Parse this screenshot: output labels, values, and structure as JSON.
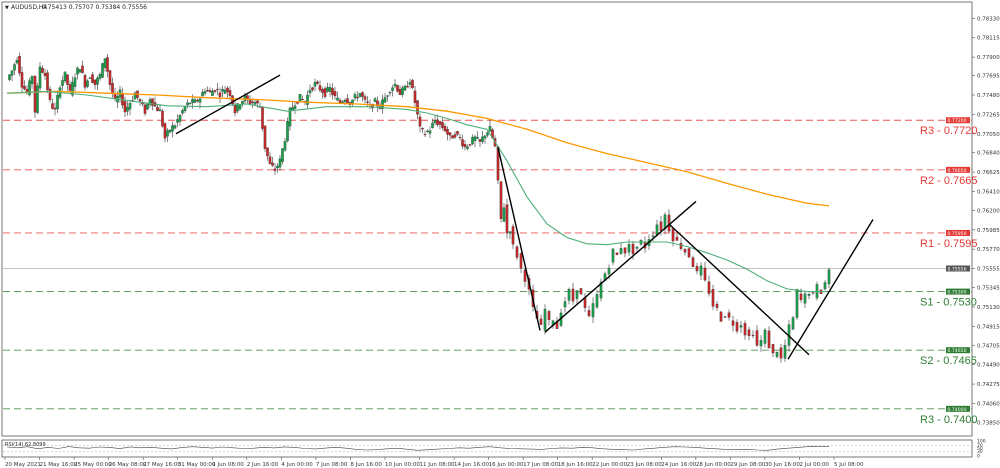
{
  "header": {
    "symbol_label": "AUDUSD,H4",
    "ohlc_label": "0.75413 0.75707 0.75384 0.75556"
  },
  "rsi": {
    "label": "RSI(14) 62.8099",
    "ticks": [
      "100",
      "70",
      "50",
      "30",
      "0"
    ],
    "value": 62.8099
  },
  "chart_data": {
    "type": "candlestick",
    "title": "AUDUSD,H4",
    "ylim": [
      0.7371,
      0.785
    ],
    "y_ticks": [
      "0.78330",
      "0.78115",
      "0.77900",
      "0.77695",
      "0.77480",
      "0.77265",
      "0.77050",
      "0.76840",
      "0.76625",
      "0.76410",
      "0.76200",
      "0.75985",
      "0.75770",
      "0.75555",
      "0.75345",
      "0.75130",
      "0.74915",
      "0.74705",
      "0.74490",
      "0.74275",
      "0.74060",
      "0.73850"
    ],
    "x_ticks": [
      "20 May 2021",
      "21 May 16:00",
      "25 May 00:00",
      "26 May 08:00",
      "27 May 16:00",
      "31 May 00:00",
      "1 Jun 08:00",
      "2 Jun 16:00",
      "4 Jun 00:00",
      "7 Jun 08:00",
      "8 Jun 16:00",
      "10 Jun 00:00",
      "11 Jun 08:00",
      "14 Jun 16:00",
      "16 Jun 00:00",
      "17 Jun 08:00",
      "18 Jun 16:00",
      "22 Jun 00:00",
      "23 Jun 08:00",
      "24 Jun 16:00",
      "28 Jun 00:00",
      "29 Jun 08:00",
      "30 Jun 16:00",
      "2 Jul 00:00",
      "5 Jul 08:00"
    ],
    "current_price": {
      "value": 0.75556,
      "label": "0.75556"
    },
    "levels": [
      {
        "name": "R3 - 0.7720",
        "value": 0.772,
        "tag": "0.77200",
        "color": "#e53935",
        "dash": "red"
      },
      {
        "name": "R2 - 0.7665",
        "value": 0.7665,
        "tag": "0.76650",
        "color": "#e53935",
        "dash": "red"
      },
      {
        "name": "R1 - 0.7595",
        "value": 0.7595,
        "tag": "0.75950",
        "color": "#e53935",
        "dash": "red"
      },
      {
        "name": "S1 - 0.7530",
        "value": 0.753,
        "tag": "0.75300",
        "color": "#2e7d32",
        "dash": "green"
      },
      {
        "name": "S2 - 0.7465",
        "value": 0.7465,
        "tag": "0.74650",
        "color": "#2e7d32",
        "dash": "green"
      },
      {
        "name": "R3 - 0.7400",
        "value": 0.74,
        "tag": "0.74000",
        "color": "#2e7d32",
        "dash": "green"
      }
    ],
    "colors": {
      "bull": "#1a9e4b",
      "bear": "#c62828",
      "ma_fast": "#4caf7a",
      "ma_slow": "#ff9800",
      "trendline": "#000000",
      "current_line": "#b0b0b0"
    },
    "candle_path": [
      [
        0,
        0.7765
      ],
      [
        5,
        0.7775
      ],
      [
        10,
        0.779
      ],
      [
        15,
        0.776
      ],
      [
        20,
        0.775
      ],
      [
        25,
        0.777
      ],
      [
        28,
        0.773
      ],
      [
        33,
        0.778
      ],
      [
        38,
        0.777
      ],
      [
        43,
        0.774
      ],
      [
        48,
        0.773
      ],
      [
        53,
        0.776
      ],
      [
        58,
        0.777
      ],
      [
        63,
        0.775
      ],
      [
        68,
        0.777
      ],
      [
        73,
        0.778
      ],
      [
        78,
        0.776
      ],
      [
        83,
        0.777
      ],
      [
        88,
        0.776
      ],
      [
        93,
        0.777
      ],
      [
        98,
        0.779
      ],
      [
        103,
        0.776
      ],
      [
        108,
        0.774
      ],
      [
        113,
        0.775
      ],
      [
        118,
        0.773
      ],
      [
        123,
        0.774
      ],
      [
        128,
        0.775
      ],
      [
        133,
        0.774
      ],
      [
        138,
        0.773
      ],
      [
        143,
        0.7745
      ],
      [
        148,
        0.7735
      ],
      [
        153,
        0.773
      ],
      [
        158,
        0.77
      ],
      [
        163,
        0.771
      ],
      [
        168,
        0.7715
      ],
      [
        173,
        0.7725
      ],
      [
        178,
        0.7735
      ],
      [
        183,
        0.774
      ],
      [
        188,
        0.774
      ],
      [
        193,
        0.7745
      ],
      [
        198,
        0.7755
      ],
      [
        203,
        0.775
      ],
      [
        208,
        0.7755
      ],
      [
        213,
        0.775
      ],
      [
        218,
        0.7755
      ],
      [
        223,
        0.775
      ],
      [
        228,
        0.773
      ],
      [
        233,
        0.774
      ],
      [
        238,
        0.7745
      ],
      [
        243,
        0.774
      ],
      [
        248,
        0.774
      ],
      [
        253,
        0.7735
      ],
      [
        258,
        0.769
      ],
      [
        263,
        0.767
      ],
      [
        268,
        0.7665
      ],
      [
        273,
        0.7675
      ],
      [
        278,
        0.77
      ],
      [
        283,
        0.773
      ],
      [
        288,
        0.774
      ],
      [
        293,
        0.7745
      ],
      [
        298,
        0.774
      ],
      [
        303,
        0.7755
      ],
      [
        308,
        0.776
      ],
      [
        313,
        0.7755
      ],
      [
        318,
        0.775
      ],
      [
        323,
        0.7755
      ],
      [
        328,
        0.7745
      ],
      [
        333,
        0.774
      ],
      [
        338,
        0.7745
      ],
      [
        343,
        0.774
      ],
      [
        348,
        0.7745
      ],
      [
        353,
        0.775
      ],
      [
        358,
        0.774
      ],
      [
        363,
        0.7735
      ],
      [
        368,
        0.774
      ],
      [
        373,
        0.7735
      ],
      [
        378,
        0.7745
      ],
      [
        383,
        0.7755
      ],
      [
        388,
        0.776
      ],
      [
        393,
        0.775
      ],
      [
        398,
        0.7755
      ],
      [
        403,
        0.7765
      ],
      [
        408,
        0.774
      ],
      [
        413,
        0.771
      ],
      [
        418,
        0.7705
      ],
      [
        423,
        0.771
      ],
      [
        428,
        0.772
      ],
      [
        433,
        0.7715
      ],
      [
        438,
        0.771
      ],
      [
        443,
        0.77
      ],
      [
        448,
        0.7705
      ],
      [
        453,
        0.77
      ],
      [
        458,
        0.769
      ],
      [
        463,
        0.7695
      ],
      [
        468,
        0.77
      ],
      [
        473,
        0.7695
      ],
      [
        478,
        0.7705
      ],
      [
        483,
        0.771
      ],
      [
        488,
        0.769
      ],
      [
        491,
        0.765
      ],
      [
        494,
        0.761
      ],
      [
        497,
        0.7625
      ],
      [
        500,
        0.7595
      ],
      [
        503,
        0.76
      ],
      [
        506,
        0.758
      ],
      [
        510,
        0.757
      ],
      [
        514,
        0.7555
      ],
      [
        518,
        0.7545
      ],
      [
        522,
        0.753
      ],
      [
        526,
        0.751
      ],
      [
        530,
        0.75
      ],
      [
        534,
        0.749
      ],
      [
        538,
        0.751
      ],
      [
        542,
        0.7495
      ],
      [
        546,
        0.75
      ],
      [
        550,
        0.749
      ],
      [
        554,
        0.751
      ],
      [
        558,
        0.752
      ],
      [
        562,
        0.753
      ],
      [
        566,
        0.752
      ],
      [
        570,
        0.7535
      ],
      [
        574,
        0.7525
      ],
      [
        578,
        0.751
      ],
      [
        582,
        0.75
      ],
      [
        586,
        0.7515
      ],
      [
        590,
        0.7525
      ],
      [
        594,
        0.754
      ],
      [
        598,
        0.755
      ],
      [
        602,
        0.756
      ],
      [
        606,
        0.7575
      ],
      [
        610,
        0.757
      ],
      [
        614,
        0.758
      ],
      [
        618,
        0.7575
      ],
      [
        622,
        0.758
      ],
      [
        626,
        0.7575
      ],
      [
        630,
        0.758
      ],
      [
        634,
        0.7585
      ],
      [
        638,
        0.758
      ],
      [
        642,
        0.759
      ],
      [
        646,
        0.7595
      ],
      [
        650,
        0.7605
      ],
      [
        654,
        0.76
      ],
      [
        658,
        0.7615
      ],
      [
        662,
        0.76
      ],
      [
        666,
        0.759
      ],
      [
        670,
        0.7585
      ],
      [
        674,
        0.758
      ],
      [
        678,
        0.7575
      ],
      [
        682,
        0.757
      ],
      [
        686,
        0.756
      ],
      [
        690,
        0.755
      ],
      [
        694,
        0.7555
      ],
      [
        698,
        0.754
      ],
      [
        702,
        0.753
      ],
      [
        706,
        0.7515
      ],
      [
        710,
        0.751
      ],
      [
        714,
        0.75
      ],
      [
        718,
        0.7505
      ],
      [
        722,
        0.75
      ],
      [
        726,
        0.7495
      ],
      [
        730,
        0.749
      ],
      [
        734,
        0.7495
      ],
      [
        738,
        0.7485
      ],
      [
        742,
        0.748
      ],
      [
        746,
        0.7485
      ],
      [
        750,
        0.747
      ],
      [
        754,
        0.7475
      ],
      [
        758,
        0.7485
      ],
      [
        762,
        0.747
      ],
      [
        766,
        0.746
      ],
      [
        770,
        0.7465
      ],
      [
        774,
        0.7455
      ],
      [
        778,
        0.747
      ],
      [
        782,
        0.749
      ],
      [
        786,
        0.75
      ],
      [
        790,
        0.753
      ],
      [
        794,
        0.752
      ],
      [
        798,
        0.7525
      ],
      [
        802,
        0.753
      ],
      [
        806,
        0.7525
      ],
      [
        810,
        0.7535
      ],
      [
        814,
        0.753
      ],
      [
        818,
        0.754
      ],
      [
        822,
        0.7555
      ]
    ],
    "ma_fast": [
      [
        0,
        0.775
      ],
      [
        40,
        0.7752
      ],
      [
        80,
        0.7748
      ],
      [
        120,
        0.7742
      ],
      [
        160,
        0.7736
      ],
      [
        200,
        0.7735
      ],
      [
        240,
        0.7738
      ],
      [
        280,
        0.773
      ],
      [
        320,
        0.7735
      ],
      [
        360,
        0.7735
      ],
      [
        400,
        0.7732
      ],
      [
        420,
        0.7728
      ],
      [
        440,
        0.7722
      ],
      [
        460,
        0.7715
      ],
      [
        480,
        0.771
      ],
      [
        500,
        0.7675
      ],
      [
        520,
        0.7635
      ],
      [
        540,
        0.7605
      ],
      [
        560,
        0.759
      ],
      [
        580,
        0.7583
      ],
      [
        600,
        0.7582
      ],
      [
        620,
        0.7585
      ],
      [
        640,
        0.7585
      ],
      [
        660,
        0.7585
      ],
      [
        680,
        0.758
      ],
      [
        700,
        0.7573
      ],
      [
        720,
        0.7565
      ],
      [
        740,
        0.7555
      ],
      [
        760,
        0.7542
      ],
      [
        780,
        0.7533
      ],
      [
        800,
        0.753
      ],
      [
        822,
        0.753
      ]
    ],
    "ma_slow": [
      [
        0,
        0.775
      ],
      [
        50,
        0.7752
      ],
      [
        100,
        0.775
      ],
      [
        150,
        0.7748
      ],
      [
        200,
        0.7745
      ],
      [
        250,
        0.7743
      ],
      [
        300,
        0.774
      ],
      [
        350,
        0.7738
      ],
      [
        400,
        0.7735
      ],
      [
        440,
        0.773
      ],
      [
        480,
        0.7722
      ],
      [
        520,
        0.771
      ],
      [
        560,
        0.7695
      ],
      [
        600,
        0.7683
      ],
      [
        640,
        0.7673
      ],
      [
        680,
        0.7663
      ],
      [
        720,
        0.765
      ],
      [
        760,
        0.7638
      ],
      [
        800,
        0.7628
      ],
      [
        822,
        0.7625
      ]
    ],
    "trendlines": [
      [
        [
          169,
          0.7705
        ],
        [
          273,
          0.777
        ]
      ],
      [
        [
          491,
          0.769
        ],
        [
          533,
          0.7487
        ]
      ],
      [
        [
          538,
          0.7485
        ],
        [
          689,
          0.763
        ]
      ],
      [
        [
          662,
          0.7605
        ],
        [
          802,
          0.746
        ]
      ],
      [
        [
          781,
          0.7455
        ],
        [
          866,
          0.761
        ]
      ]
    ],
    "rsi_series": [
      60,
      55,
      62,
      48,
      58,
      50,
      63,
      55,
      52,
      60,
      57,
      49,
      61,
      55,
      58,
      52,
      47,
      56,
      62,
      58,
      53,
      60,
      55,
      50,
      52,
      58,
      54,
      61,
      57,
      50,
      47,
      53,
      58,
      52,
      44,
      40,
      42,
      48,
      52,
      45,
      38,
      42,
      46,
      50,
      55,
      52,
      58,
      62,
      55,
      50,
      48,
      46,
      44,
      50,
      54,
      52,
      57,
      55,
      48,
      45,
      42,
      40,
      47,
      52,
      58,
      62,
      60,
      57,
      52,
      48,
      44,
      42,
      45,
      40,
      38,
      46,
      52,
      57,
      63,
      62,
      63
    ]
  }
}
